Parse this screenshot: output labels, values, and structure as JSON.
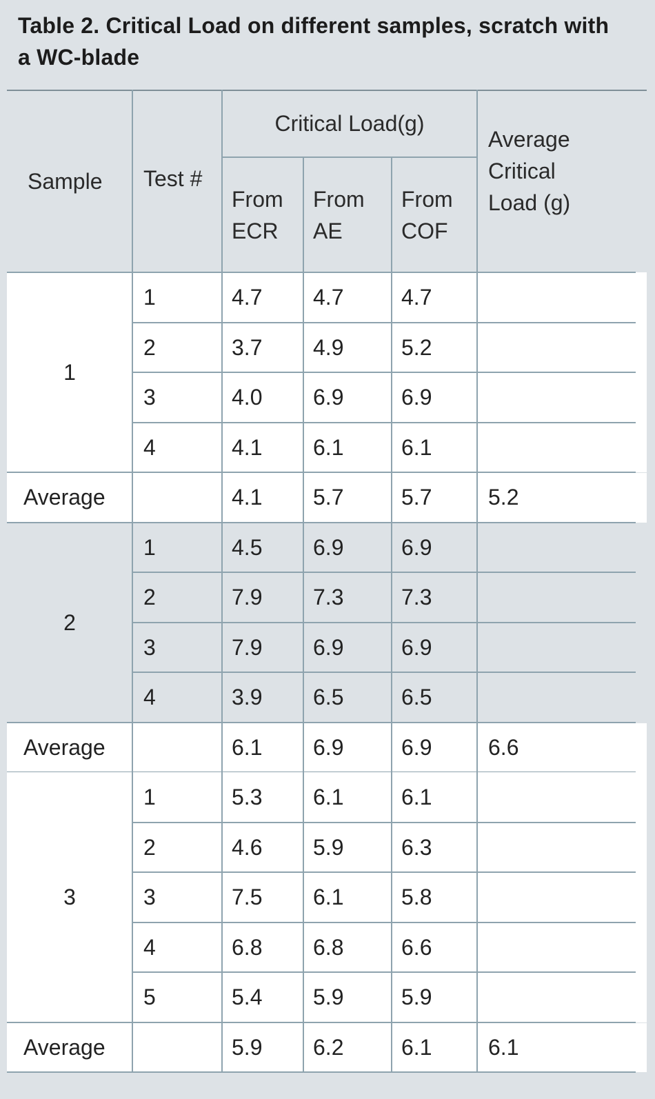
{
  "title": "Table 2. Critical Load on different samples, scratch with a WC-blade",
  "headers": {
    "sample": "Sample",
    "test": "Test #",
    "critical_load": "Critical Load(g)",
    "from_ecr": "From ECR",
    "from_ae": "From AE",
    "from_cof": "From COF",
    "average_critical_load": "Average Critical Load (g)"
  },
  "groups": [
    {
      "sample": "1",
      "rows": [
        {
          "test": "1",
          "ecr": "4.7",
          "ae": "4.7",
          "cof": "4.7"
        },
        {
          "test": "2",
          "ecr": "3.7",
          "ae": "4.9",
          "cof": "5.2"
        },
        {
          "test": "3",
          "ecr": "4.0",
          "ae": "6.9",
          "cof": "6.9"
        },
        {
          "test": "4",
          "ecr": "4.1",
          "ae": "6.1",
          "cof": "6.1"
        }
      ],
      "average": {
        "label": "Average",
        "ecr": "4.1",
        "ae": "5.7",
        "cof": "5.7",
        "overall": "5.2"
      }
    },
    {
      "sample": "2",
      "rows": [
        {
          "test": "1",
          "ecr": "4.5",
          "ae": "6.9",
          "cof": "6.9"
        },
        {
          "test": "2",
          "ecr": "7.9",
          "ae": "7.3",
          "cof": "7.3"
        },
        {
          "test": "3",
          "ecr": "7.9",
          "ae": "6.9",
          "cof": "6.9"
        },
        {
          "test": "4",
          "ecr": "3.9",
          "ae": "6.5",
          "cof": "6.5"
        }
      ],
      "average": {
        "label": "Average",
        "ecr": "6.1",
        "ae": "6.9",
        "cof": "6.9",
        "overall": "6.6"
      }
    },
    {
      "sample": "3",
      "rows": [
        {
          "test": "1",
          "ecr": "5.3",
          "ae": "6.1",
          "cof": "6.1"
        },
        {
          "test": "2",
          "ecr": "4.6",
          "ae": "5.9",
          "cof": "6.3"
        },
        {
          "test": "3",
          "ecr": "7.5",
          "ae": "6.1",
          "cof": "5.8"
        },
        {
          "test": "4",
          "ecr": "6.8",
          "ae": "6.8",
          "cof": "6.6"
        },
        {
          "test": "5",
          "ecr": "5.4",
          "ae": "5.9",
          "cof": "5.9"
        }
      ],
      "average": {
        "label": "Average",
        "ecr": "5.9",
        "ae": "6.2",
        "cof": "6.1",
        "overall": "6.1"
      }
    }
  ],
  "colors": {
    "header_bg": "#dde2e6",
    "white_bg": "#ffffff",
    "rule": "#8ea3ae"
  }
}
